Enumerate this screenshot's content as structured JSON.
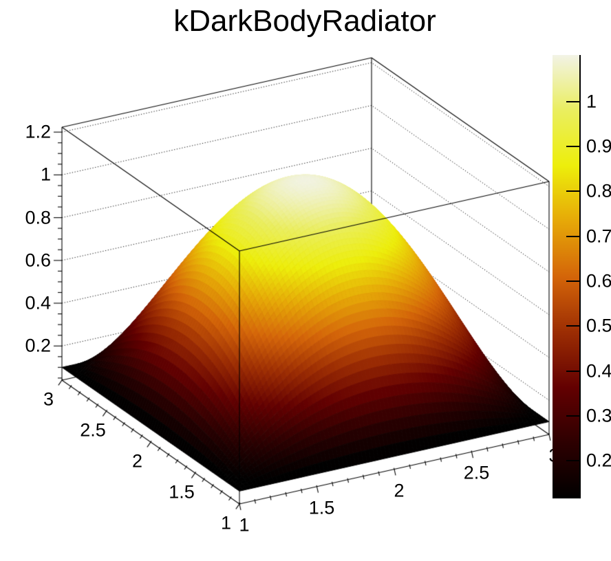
{
  "page": {
    "background": "#ffffff"
  },
  "title": {
    "text": "kDarkBodyRadiator"
  },
  "chart_data": {
    "type": "surface3d",
    "title": "kDarkBodyRadiator",
    "xlabel": "",
    "ylabel": "",
    "zlabel": "",
    "x_range": [
      1,
      3
    ],
    "y_range": [
      1,
      3
    ],
    "z_axis_range": [
      0.04,
      1.223
    ],
    "x_ticks": {
      "major_values": [
        1,
        1.5,
        2,
        2.5,
        3
      ],
      "major_labels": [
        "1",
        "1.5",
        "2",
        "2.5",
        "3"
      ],
      "minor_step": 0.1
    },
    "y_ticks": {
      "major_values": [
        1,
        1.5,
        2,
        2.5,
        3
      ],
      "major_labels": [
        "1",
        "1.5",
        "2",
        "2.5",
        "3"
      ],
      "minor_step": 0.1
    },
    "z_ticks": {
      "major_values": [
        0.2,
        0.4,
        0.6,
        0.8,
        1.0,
        1.2
      ],
      "major_labels": [
        "0.2",
        "0.4",
        "0.6",
        "0.8",
        "1",
        "1.2"
      ],
      "minor_step": 0.05
    },
    "colorbar": {
      "min": 0.116,
      "max": 1.104,
      "tick_values": [
        0.2,
        0.3,
        0.4,
        0.5,
        0.6,
        0.7,
        0.8,
        0.9,
        1.0
      ],
      "tick_labels": [
        "0.2",
        "0.3",
        "0.4",
        "0.5",
        "0.6",
        "0.7",
        "0.8",
        "0.9",
        "1"
      ]
    },
    "palette": {
      "name": "kDarkBodyRadiator",
      "stops": [
        0,
        0.125,
        0.25,
        0.375,
        0.5,
        0.625,
        0.75,
        0.875,
        1
      ],
      "colors": [
        "#000000",
        "#2d0001",
        "#630001",
        "#9c2d03",
        "#d46509",
        "#e6a808",
        "#edee0b",
        "#eaee5f",
        "#f2f3e6"
      ]
    },
    "surface": {
      "formula": "z = 0.1 + (1-(x-2)^2)*(1-(y-2)^2)",
      "z_offset": 0.1,
      "z_min": 0.1,
      "z_max": 1.1,
      "samples_t": [
        1.0,
        1.1,
        1.2,
        1.3,
        1.4,
        1.5,
        1.6,
        1.7,
        1.8,
        1.9,
        2.0,
        2.1,
        2.2,
        2.3,
        2.4,
        2.5,
        2.6,
        2.7,
        2.8,
        2.9,
        3.0
      ],
      "samples_g": [
        0.0,
        0.19,
        0.36,
        0.51,
        0.64,
        0.75,
        0.84,
        0.91,
        0.96,
        0.99,
        1.0,
        0.99,
        0.96,
        0.91,
        0.84,
        0.75,
        0.64,
        0.51,
        0.36,
        0.19,
        0.0
      ]
    },
    "grid": {
      "style": "dotted",
      "walls": "back",
      "at": "z-major-ticks"
    }
  }
}
